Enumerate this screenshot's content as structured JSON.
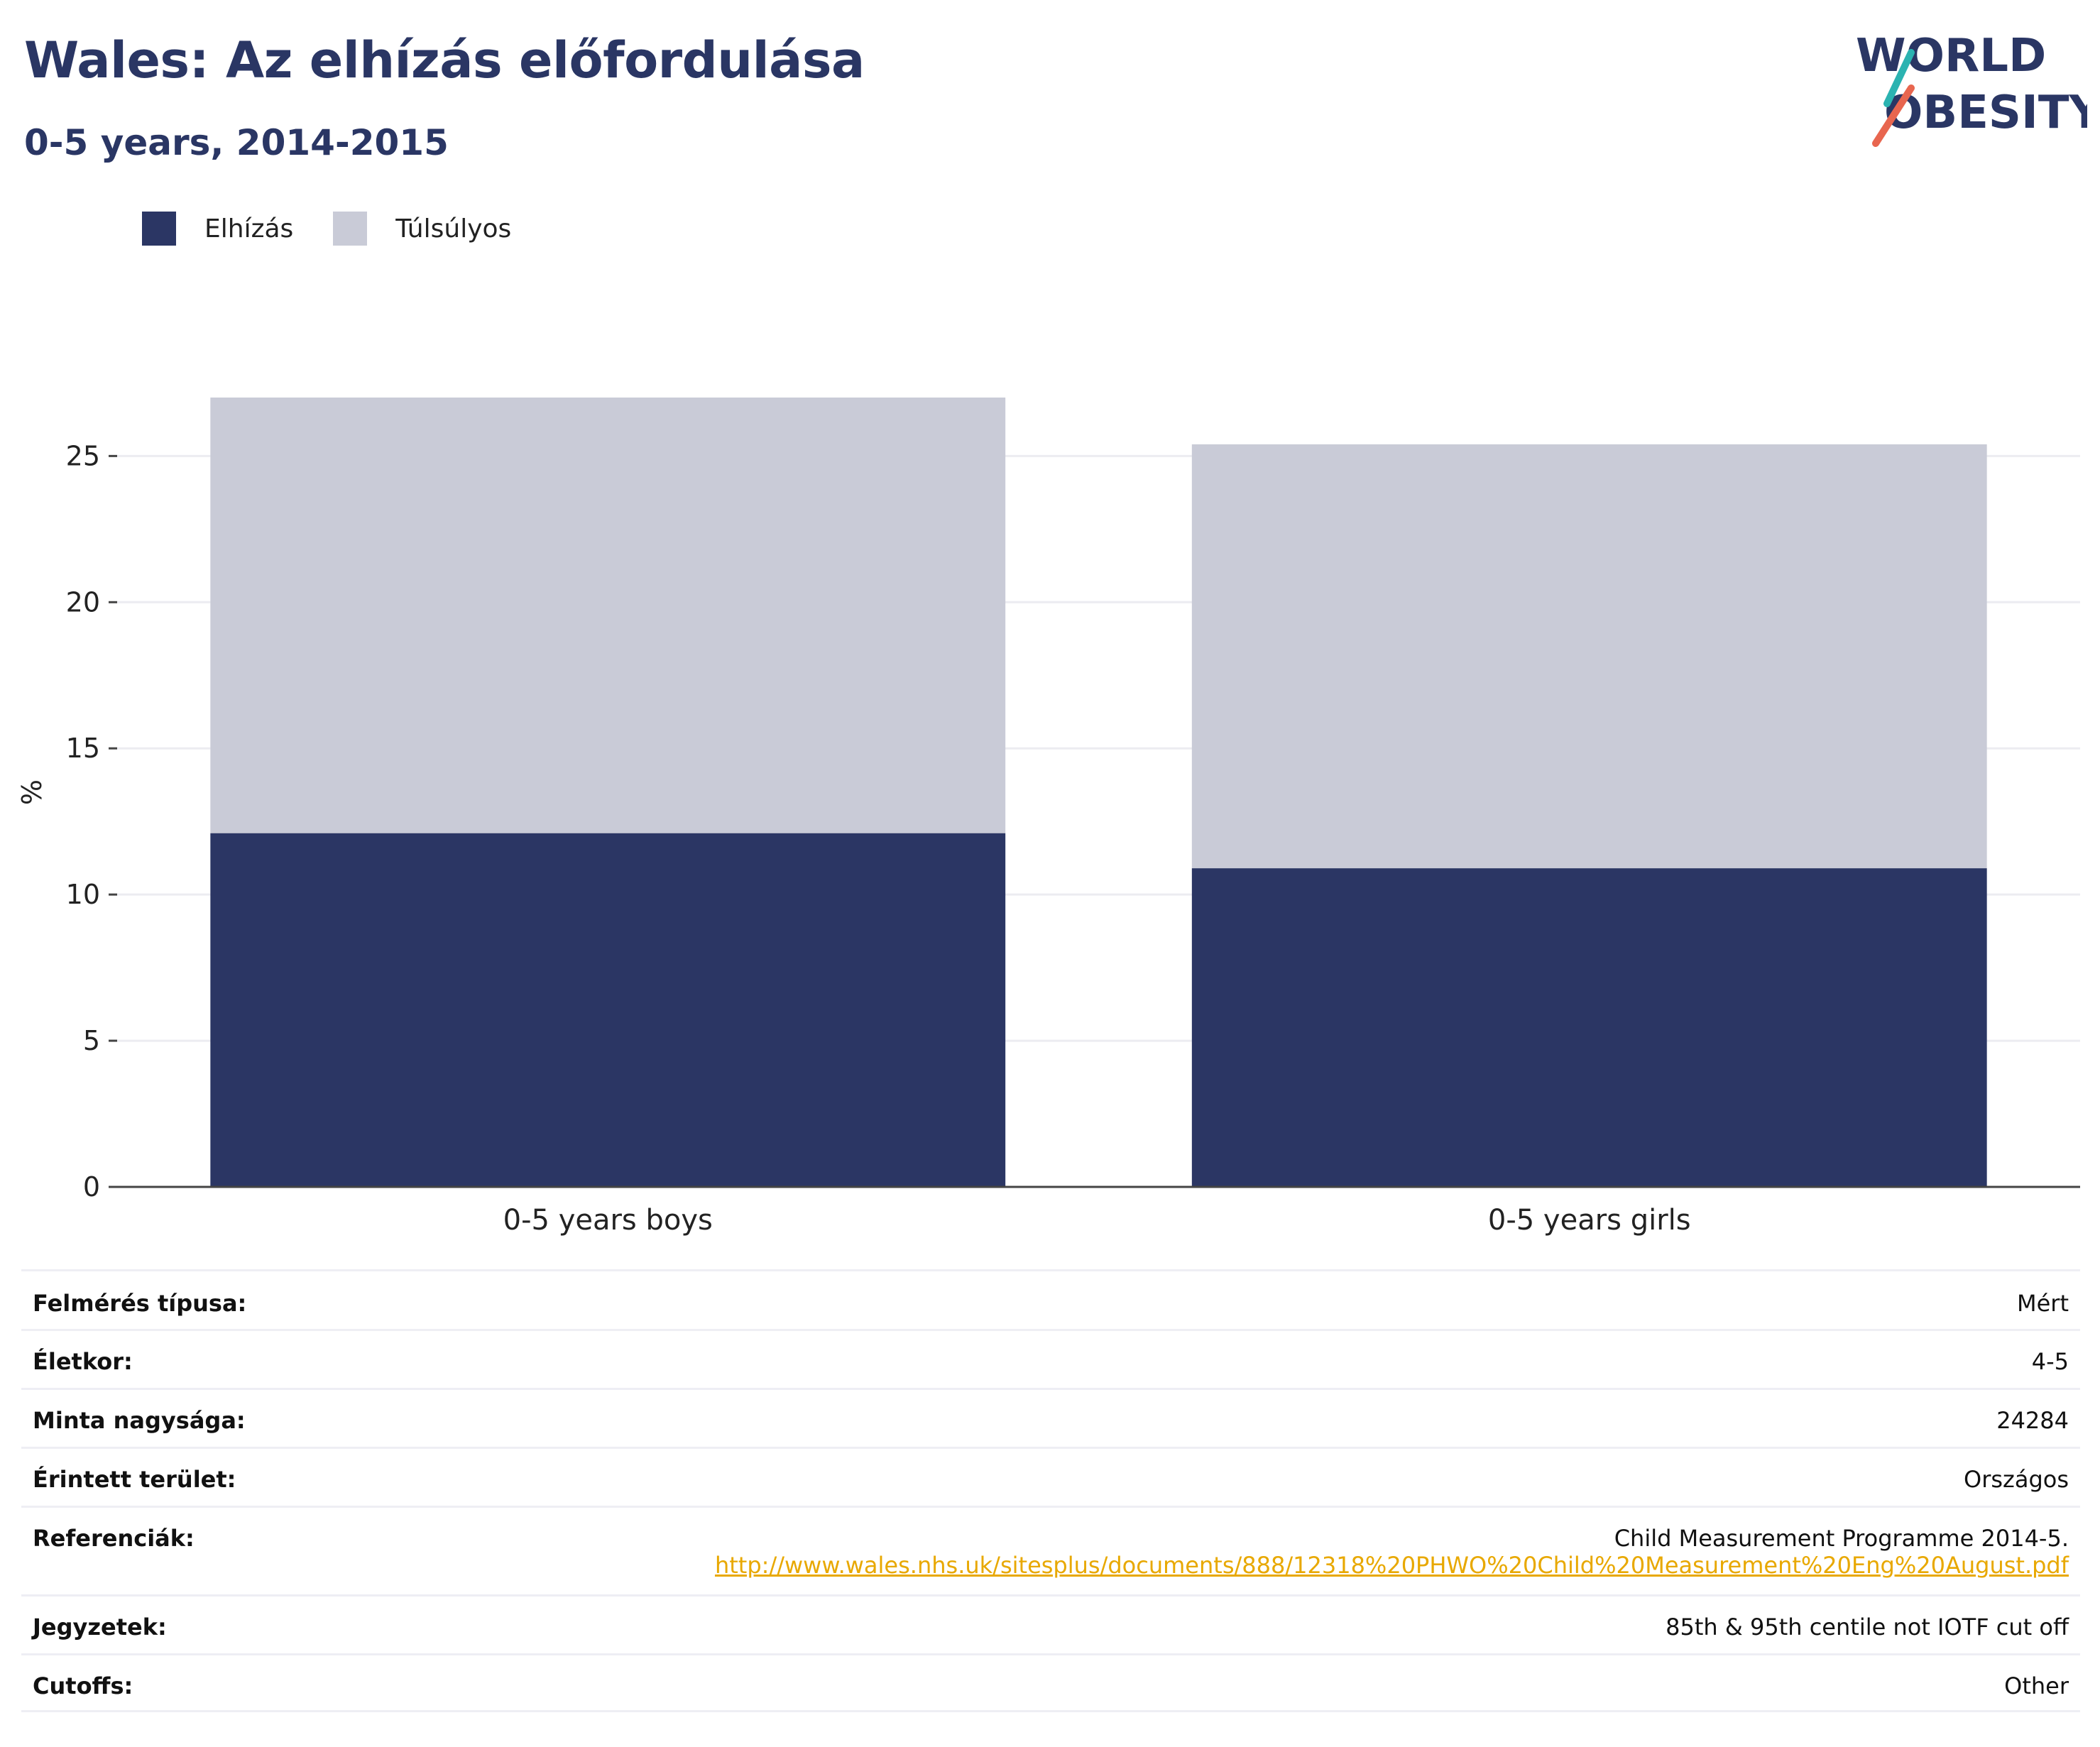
{
  "header": {
    "title": "Wales: Az elhízás előfordulása",
    "subtitle": "0-5 years, 2014-2015"
  },
  "logo": {
    "line1": "WORLD",
    "line2": "OBESITY",
    "text_color": "#2a3664",
    "accent_teal": "#2bb3b1",
    "accent_red": "#e8664f"
  },
  "legend": [
    {
      "label": "Elhízás",
      "color": "#2b3664"
    },
    {
      "label": "Túlsúlyos",
      "color": "#c9cbd7"
    }
  ],
  "chart_data": {
    "type": "bar",
    "stacked": true,
    "categories": [
      "0-5 years boys",
      "0-5 years girls"
    ],
    "series": [
      {
        "name": "Elhízás",
        "values": [
          12.1,
          10.9
        ],
        "color": "#2b3664"
      },
      {
        "name": "Túlsúlyos",
        "values": [
          14.9,
          14.5
        ],
        "color": "#c9cbd7"
      }
    ],
    "ylabel": "%",
    "ylim": [
      0,
      27
    ],
    "yticks": [
      0,
      5,
      10,
      15,
      20,
      25
    ],
    "grid": true
  },
  "info": [
    {
      "key": "Felmérés típusa:",
      "value": "Mért"
    },
    {
      "key": "Életkor:",
      "value": "4-5"
    },
    {
      "key": "Minta nagysága:",
      "value": "24284"
    },
    {
      "key": "Érintett terület:",
      "value": "Országos"
    },
    {
      "key": "Referenciák:",
      "value": "Child Measurement Programme 2014-5.",
      "link": "http://www.wales.nhs.uk/sitesplus/documents/888/12318%20PHWO%20Child%20Measurement%20Eng%20August.pdf"
    },
    {
      "key": "Jegyzetek:",
      "value": "85th & 95th centile not IOTF cut off"
    },
    {
      "key": "Cutoffs:",
      "value": "Other"
    }
  ]
}
